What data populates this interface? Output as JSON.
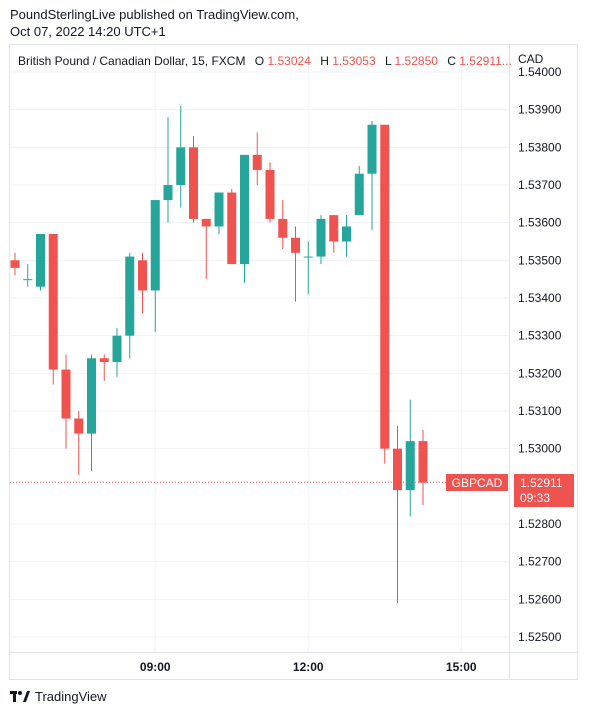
{
  "header": {
    "line1": "PoundSterlingLive published on TradingView.com,",
    "line2": "Oct 07, 2022 14:20 UTC+1"
  },
  "legend": {
    "symbol": "British Pound / Canadian Dollar, 15, FXCM",
    "o_label": "O",
    "o_value": "1.53024",
    "h_label": "H",
    "h_value": "1.53053",
    "l_label": "L",
    "l_value": "1.52850",
    "c_label": "C",
    "c_value": "1.52911..."
  },
  "price_axis": {
    "currency": "CAD"
  },
  "price_tag": {
    "symbol": "GBPCAD",
    "price": "1.52911",
    "countdown": "09:33"
  },
  "footer": {
    "brand": "TradingView"
  },
  "colors": {
    "up": "#26a69a",
    "down": "#ef5350",
    "grid": "#f0f3fa",
    "text": "#131722",
    "accent": "#ef5350"
  },
  "chart_data": {
    "type": "candlestick",
    "title": "British Pound / Canadian Dollar, 15, FXCM",
    "ylabel": "CAD",
    "ylim": [
      1.5245,
      1.5407
    ],
    "yticks": [
      "1.54000",
      "1.53900",
      "1.53800",
      "1.53700",
      "1.53600",
      "1.53500",
      "1.53400",
      "1.53300",
      "1.53200",
      "1.53100",
      "1.53000",
      "1.52800",
      "1.52700",
      "1.52600",
      "1.52500"
    ],
    "xticks": [
      "09:00",
      "12:00",
      "15:00"
    ],
    "last_price": 1.52911,
    "candles": [
      {
        "o": 1.535,
        "h": 1.5352,
        "l": 1.5346,
        "c": 1.5348
      },
      {
        "o": 1.5345,
        "h": 1.5349,
        "l": 1.5343,
        "c": 1.5345
      },
      {
        "o": 1.5343,
        "h": 1.5357,
        "l": 1.5342,
        "c": 1.5357
      },
      {
        "o": 1.5357,
        "h": 1.5357,
        "l": 1.5317,
        "c": 1.5321
      },
      {
        "o": 1.5321,
        "h": 1.5325,
        "l": 1.53,
        "c": 1.5308
      },
      {
        "o": 1.5308,
        "h": 1.531,
        "l": 1.5293,
        "c": 1.5304
      },
      {
        "o": 1.5304,
        "h": 1.5325,
        "l": 1.5294,
        "c": 1.5324
      },
      {
        "o": 1.5324,
        "h": 1.5325,
        "l": 1.5318,
        "c": 1.5323
      },
      {
        "o": 1.5323,
        "h": 1.5332,
        "l": 1.5319,
        "c": 1.533
      },
      {
        "o": 1.533,
        "h": 1.5352,
        "l": 1.5324,
        "c": 1.5351
      },
      {
        "o": 1.535,
        "h": 1.5352,
        "l": 1.5336,
        "c": 1.5342
      },
      {
        "o": 1.5342,
        "h": 1.5365,
        "l": 1.5331,
        "c": 1.5366
      },
      {
        "o": 1.5366,
        "h": 1.5388,
        "l": 1.536,
        "c": 1.537
      },
      {
        "o": 1.537,
        "h": 1.5391,
        "l": 1.5364,
        "c": 1.538
      },
      {
        "o": 1.538,
        "h": 1.5383,
        "l": 1.536,
        "c": 1.5361
      },
      {
        "o": 1.5361,
        "h": 1.5361,
        "l": 1.5345,
        "c": 1.5359
      },
      {
        "o": 1.5359,
        "h": 1.5368,
        "l": 1.5357,
        "c": 1.5368
      },
      {
        "o": 1.5368,
        "h": 1.5369,
        "l": 1.5349,
        "c": 1.5349
      },
      {
        "o": 1.5349,
        "h": 1.5378,
        "l": 1.5344,
        "c": 1.5378
      },
      {
        "o": 1.5378,
        "h": 1.5384,
        "l": 1.537,
        "c": 1.5374
      },
      {
        "o": 1.5374,
        "h": 1.5376,
        "l": 1.536,
        "c": 1.5361
      },
      {
        "o": 1.5361,
        "h": 1.5366,
        "l": 1.5353,
        "c": 1.5356
      },
      {
        "o": 1.5356,
        "h": 1.5359,
        "l": 1.5339,
        "c": 1.5352
      },
      {
        "o": 1.5351,
        "h": 1.5355,
        "l": 1.5341,
        "c": 1.5351
      },
      {
        "o": 1.5351,
        "h": 1.5362,
        "l": 1.5349,
        "c": 1.5361
      },
      {
        "o": 1.5362,
        "h": 1.5362,
        "l": 1.5352,
        "c": 1.5355
      },
      {
        "o": 1.5355,
        "h": 1.5362,
        "l": 1.5351,
        "c": 1.5359
      },
      {
        "o": 1.5362,
        "h": 1.5375,
        "l": 1.5362,
        "c": 1.5373
      },
      {
        "o": 1.5373,
        "h": 1.5387,
        "l": 1.5358,
        "c": 1.5386
      },
      {
        "o": 1.5386,
        "h": 1.5386,
        "l": 1.5296,
        "c": 1.53
      },
      {
        "o": 1.53,
        "h": 1.5306,
        "l": 1.5259,
        "c": 1.5289
      },
      {
        "o": 1.5289,
        "h": 1.5313,
        "l": 1.5282,
        "c": 1.5302
      },
      {
        "o": 1.5302,
        "h": 1.5305,
        "l": 1.5285,
        "c": 1.5291
      }
    ]
  }
}
